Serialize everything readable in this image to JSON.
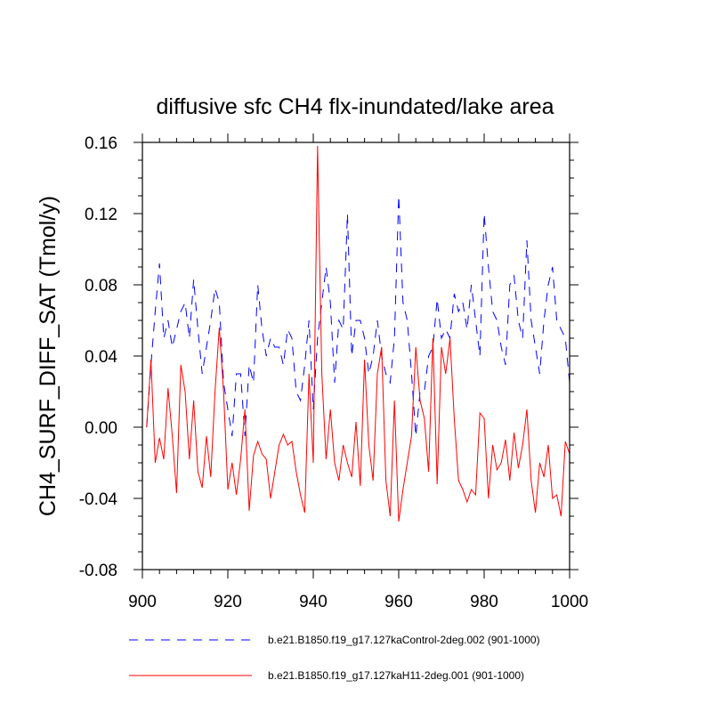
{
  "chart_data": {
    "type": "line",
    "title": "diffusive sfc CH4 flx-inundated/lake area",
    "xlabel": "",
    "ylabel": "CH4_SURF_DIFF_SAT  (Tmol/y)",
    "xlim": [
      900,
      1000
    ],
    "ylim": [
      -0.08,
      0.16
    ],
    "xticks": [
      900,
      920,
      940,
      960,
      980,
      1000
    ],
    "xtick_labels": [
      "900",
      "920",
      "940",
      "960",
      "980",
      "1000"
    ],
    "yticks": [
      -0.08,
      -0.04,
      0.0,
      0.04,
      0.08,
      0.12,
      0.16
    ],
    "ytick_labels": [
      "-0.08",
      "-0.04",
      "0.00",
      "0.04",
      "0.08",
      "0.12",
      "0.16"
    ],
    "legend_position": "bottom",
    "series": [
      {
        "name": "b.e21.B1850.f19_g17.127kaControl-2deg.002 (901-1000)",
        "color": "#0000ff",
        "style": "dashed",
        "x": [
          901,
          902,
          903,
          904,
          905,
          906,
          907,
          908,
          909,
          910,
          911,
          912,
          913,
          914,
          915,
          916,
          917,
          918,
          919,
          920,
          921,
          922,
          923,
          924,
          925,
          926,
          927,
          928,
          929,
          930,
          931,
          932,
          933,
          934,
          935,
          936,
          937,
          938,
          939,
          940,
          941,
          942,
          943,
          944,
          945,
          946,
          947,
          948,
          949,
          950,
          951,
          952,
          953,
          954,
          955,
          956,
          957,
          958,
          959,
          960,
          961,
          962,
          963,
          964,
          965,
          966,
          967,
          968,
          969,
          970,
          971,
          972,
          973,
          974,
          975,
          976,
          977,
          978,
          979,
          980,
          981,
          982,
          983,
          984,
          985,
          986,
          987,
          988,
          989,
          990,
          991,
          992,
          993,
          994,
          995,
          996,
          997,
          998,
          999,
          1000
        ],
        "values": [
          0.0,
          0.035,
          0.065,
          0.092,
          0.05,
          0.06,
          0.045,
          0.055,
          0.065,
          0.07,
          0.05,
          0.083,
          0.055,
          0.03,
          0.045,
          0.06,
          0.078,
          0.07,
          0.025,
          0.01,
          -0.005,
          0.03,
          0.03,
          -0.005,
          0.035,
          0.025,
          0.08,
          0.055,
          0.04,
          0.05,
          0.045,
          0.045,
          0.035,
          0.055,
          0.05,
          0.02,
          0.015,
          0.035,
          0.06,
          0.01,
          0.05,
          0.07,
          0.09,
          0.07,
          0.025,
          0.06,
          0.055,
          0.12,
          0.04,
          0.06,
          0.06,
          0.05,
          0.03,
          0.04,
          0.06,
          0.04,
          0.03,
          0.025,
          0.05,
          0.13,
          0.07,
          0.06,
          0.03,
          -0.005,
          0.02,
          0.02,
          0.04,
          0.045,
          0.072,
          0.05,
          0.055,
          0.05,
          0.075,
          0.065,
          0.07,
          0.055,
          0.08,
          0.06,
          0.04,
          0.12,
          0.09,
          0.065,
          0.06,
          0.045,
          0.035,
          0.08,
          0.085,
          0.06,
          0.05,
          0.105,
          0.06,
          0.045,
          0.03,
          0.06,
          0.08,
          0.09,
          0.06,
          0.055,
          0.05,
          0.025
        ]
      },
      {
        "name": "b.e21.B1850.f19_g17.127kaH11-2deg.001 (901-1000)",
        "color": "#ff0000",
        "style": "solid",
        "x": [
          901,
          902,
          903,
          904,
          905,
          906,
          907,
          908,
          909,
          910,
          911,
          912,
          913,
          914,
          915,
          916,
          917,
          918,
          919,
          920,
          921,
          922,
          923,
          924,
          925,
          926,
          927,
          928,
          929,
          930,
          931,
          932,
          933,
          934,
          935,
          936,
          937,
          938,
          939,
          940,
          941,
          942,
          943,
          944,
          945,
          946,
          947,
          948,
          949,
          950,
          951,
          952,
          953,
          954,
          955,
          956,
          957,
          958,
          959,
          960,
          961,
          962,
          963,
          964,
          965,
          966,
          967,
          968,
          969,
          970,
          971,
          972,
          973,
          974,
          975,
          976,
          977,
          978,
          979,
          980,
          981,
          982,
          983,
          984,
          985,
          986,
          987,
          988,
          989,
          990,
          991,
          992,
          993,
          994,
          995,
          996,
          997,
          998,
          999,
          1000
        ],
        "values": [
          0.0,
          0.038,
          -0.02,
          -0.006,
          -0.018,
          0.022,
          -0.005,
          -0.037,
          0.035,
          0.02,
          -0.018,
          0.015,
          -0.025,
          -0.034,
          -0.005,
          -0.028,
          0.02,
          0.056,
          0.02,
          -0.035,
          -0.02,
          -0.038,
          -0.018,
          0.01,
          -0.047,
          -0.016,
          -0.008,
          -0.015,
          -0.018,
          -0.04,
          -0.025,
          -0.01,
          -0.004,
          -0.01,
          -0.008,
          -0.025,
          -0.038,
          -0.048,
          0.03,
          -0.02,
          0.158,
          0.03,
          -0.018,
          0.01,
          -0.02,
          -0.03,
          -0.01,
          -0.02,
          -0.028,
          0.003,
          -0.033,
          0.038,
          -0.01,
          -0.03,
          0.03,
          0.045,
          -0.03,
          -0.05,
          0.015,
          -0.053,
          -0.035,
          -0.02,
          -0.005,
          0.045,
          0.015,
          0.005,
          -0.025,
          0.05,
          -0.032,
          0.045,
          0.03,
          0.05,
          0.005,
          -0.03,
          -0.035,
          -0.042,
          -0.035,
          -0.038,
          0.008,
          0.005,
          -0.04,
          -0.01,
          -0.024,
          -0.02,
          -0.007,
          -0.03,
          -0.003,
          -0.023,
          -0.01,
          0.01,
          -0.03,
          -0.048,
          -0.02,
          -0.028,
          -0.01,
          -0.04,
          -0.038,
          -0.05,
          -0.008,
          -0.015
        ]
      }
    ]
  }
}
